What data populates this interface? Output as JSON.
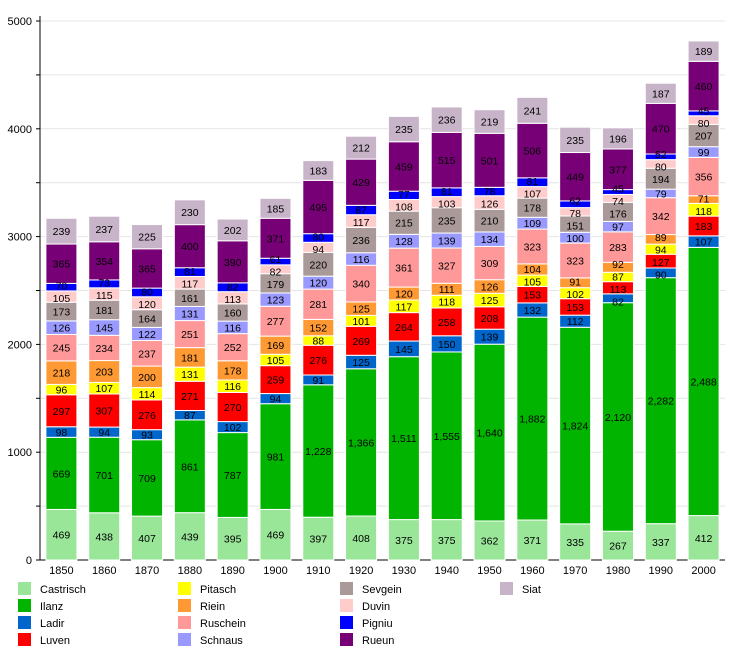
{
  "chart_data": {
    "type": "bar",
    "stacked": true,
    "title": "",
    "xlabel": "",
    "ylabel": "",
    "ylim": [
      0,
      5000
    ],
    "yticks": [
      0,
      1000,
      2000,
      3000,
      4000,
      5000
    ],
    "grid": true,
    "legend_position": "bottom",
    "categories": [
      "1850",
      "1860",
      "1870",
      "1880",
      "1890",
      "1900",
      "1910",
      "1920",
      "1930",
      "1940",
      "1950",
      "1960",
      "1970",
      "1980",
      "1990",
      "2000"
    ],
    "series": [
      {
        "name": "Castrisch",
        "color": "#99e699",
        "values": [
          469,
          438,
          407,
          439,
          395,
          469,
          397,
          408,
          375,
          375,
          362,
          371,
          335,
          267,
          337,
          412
        ]
      },
      {
        "name": "Ilanz",
        "color": "#00b400",
        "values": [
          669,
          701,
          709,
          861,
          787,
          981,
          1228,
          1366,
          1511,
          1555,
          1640,
          1882,
          1824,
          2120,
          2282,
          2488
        ]
      },
      {
        "name": "Ladir",
        "color": "#0066cc",
        "values": [
          98,
          94,
          93,
          87,
          102,
          94,
          91,
          125,
          145,
          150,
          139,
          132,
          112,
          82,
          90,
          107
        ]
      },
      {
        "name": "Luven",
        "color": "#ff0000",
        "values": [
          297,
          307,
          276,
          271,
          270,
          259,
          276,
          269,
          264,
          258,
          208,
          153,
          153,
          113,
          127,
          183
        ]
      },
      {
        "name": "Pitasch",
        "color": "#ffff00",
        "values": [
          96,
          107,
          114,
          131,
          116,
          105,
          88,
          101,
          117,
          118,
          125,
          105,
          102,
          87,
          94,
          118
        ]
      },
      {
        "name": "Riein",
        "color": "#ff9933",
        "values": [
          218,
          203,
          200,
          181,
          178,
          169,
          152,
          125,
          120,
          111,
          126,
          104,
          91,
          92,
          89,
          71
        ]
      },
      {
        "name": "Ruschein",
        "color": "#ff9999",
        "values": [
          245,
          234,
          237,
          251,
          252,
          277,
          281,
          340,
          361,
          327,
          309,
          323,
          323,
          283,
          342,
          356
        ]
      },
      {
        "name": "Schnaus",
        "color": "#9999ff",
        "values": [
          126,
          145,
          122,
          131,
          116,
          123,
          120,
          116,
          128,
          139,
          134,
          109,
          100,
          97,
          79,
          99
        ]
      },
      {
        "name": "Sevgein",
        "color": "#aa9999",
        "values": [
          173,
          181,
          164,
          161,
          160,
          179,
          220,
          236,
          215,
          235,
          210,
          178,
          151,
          176,
          194,
          207
        ]
      },
      {
        "name": "Duvin",
        "color": "#ffcccc",
        "values": [
          105,
          115,
          120,
          117,
          113,
          82,
          94,
          117,
          108,
          103,
          126,
          107,
          78,
          74,
          80,
          80
        ]
      },
      {
        "name": "Pigniu",
        "color": "#0000ff",
        "values": [
          70,
          73,
          80,
          81,
          82,
          61,
          80,
          87,
          77,
          81,
          78,
          81,
          62,
          45,
          52,
          45
        ]
      },
      {
        "name": "Rueun",
        "color": "#770077",
        "values": [
          365,
          354,
          365,
          400,
          390,
          371,
          495,
          429,
          459,
          515,
          501,
          506,
          449,
          377,
          470,
          460
        ]
      },
      {
        "name": "Siat",
        "color": "#c8b4c8",
        "values": [
          239,
          237,
          225,
          230,
          202,
          185,
          183,
          212,
          235,
          236,
          219,
          241,
          235,
          196,
          187,
          189
        ]
      }
    ]
  }
}
